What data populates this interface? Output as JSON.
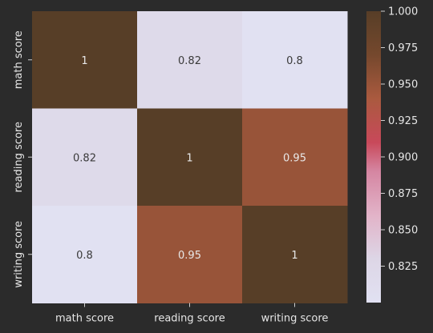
{
  "chart_data": {
    "type": "heatmap",
    "title": "",
    "xlabel": "",
    "ylabel": "",
    "x_categories": [
      "math score",
      "reading score",
      "writing score"
    ],
    "y_categories": [
      "math score",
      "reading score",
      "writing score"
    ],
    "values": [
      [
        1,
        0.82,
        0.8
      ],
      [
        0.82,
        1,
        0.95
      ],
      [
        0.8,
        0.95,
        1
      ]
    ],
    "cell_labels": [
      [
        "1",
        "0.82",
        "0.8"
      ],
      [
        "0.82",
        "1",
        "0.95"
      ],
      [
        "0.8",
        "0.95",
        "1"
      ]
    ],
    "colorbar": {
      "range": [
        0.8,
        1.0
      ],
      "ticks": [
        0.825,
        0.85,
        0.875,
        0.9,
        0.925,
        0.95,
        0.975,
        1.0
      ],
      "tick_labels": [
        "0.825",
        "0.850",
        "0.875",
        "0.900",
        "0.925",
        "0.950",
        "0.975",
        "1.000"
      ]
    },
    "colormap": [
      {
        "v": 0.8,
        "color": "#e1e1f2"
      },
      {
        "v": 0.83,
        "color": "#ddd6e6"
      },
      {
        "v": 0.86,
        "color": "#e2b3c8"
      },
      {
        "v": 0.89,
        "color": "#d586a2"
      },
      {
        "v": 0.91,
        "color": "#c8495a"
      },
      {
        "v": 0.94,
        "color": "#aa5a3f"
      },
      {
        "v": 0.97,
        "color": "#75482d"
      },
      {
        "v": 1.0,
        "color": "#573e27"
      }
    ]
  }
}
